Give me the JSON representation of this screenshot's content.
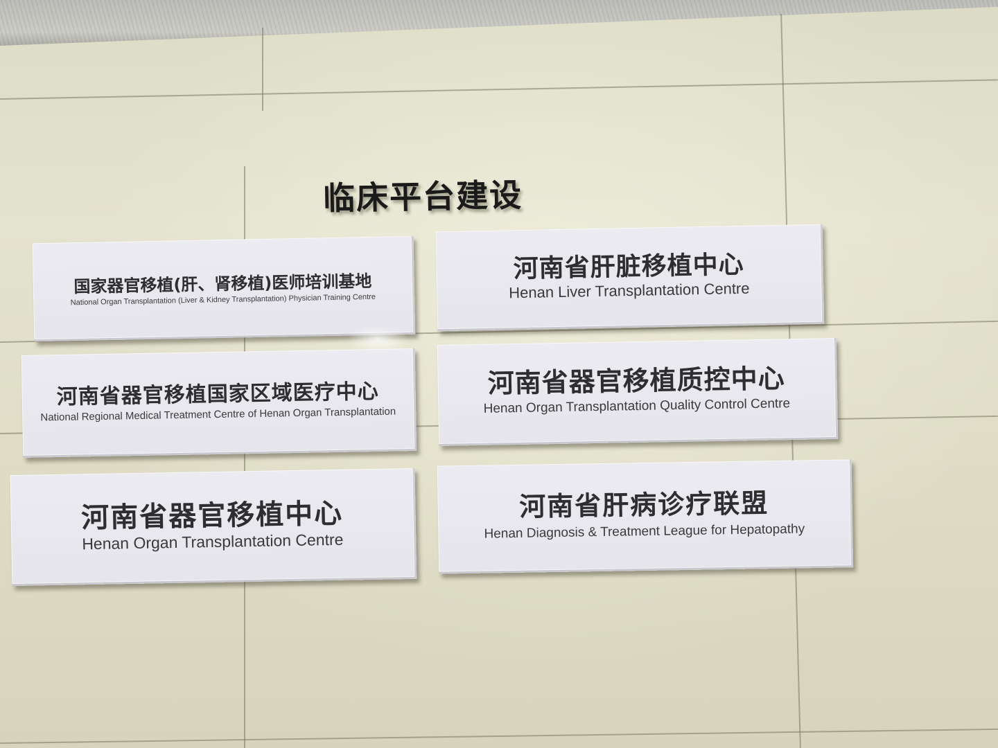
{
  "wall": {
    "heading": "临床平台建设"
  },
  "signs": [
    {
      "zh": "国家器官移植(肝、肾移植)医师培训基地",
      "en": "National Organ Transplantation (Liver & Kidney Transplantation) Physician Training Centre"
    },
    {
      "zh": "河南省肝脏移植中心",
      "en": "Henan Liver  Transplantation Centre"
    },
    {
      "zh": "河南省器官移植国家区域医疗中心",
      "en": "National Regional Medical Treatment Centre of Henan Organ Transplantation"
    },
    {
      "zh": "河南省器官移植质控中心",
      "en": "Henan Organ Transplantation Quality Control Centre"
    },
    {
      "zh": "河南省器官移植中心",
      "en": "Henan Organ Transplantation Centre"
    },
    {
      "zh": "河南省肝病诊疗联盟",
      "en": "Henan Diagnosis & Treatment League for Hepatopathy"
    }
  ]
}
